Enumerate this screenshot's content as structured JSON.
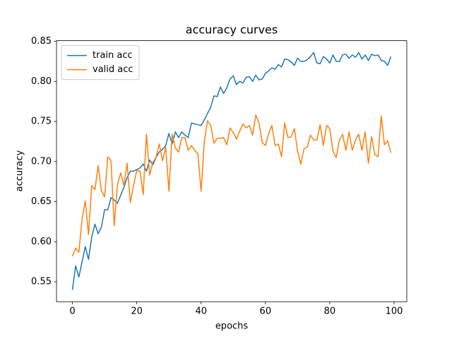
{
  "chart_data": {
    "type": "line",
    "title": "accuracy curves",
    "x_label": "epochs",
    "y_label": "accuracy",
    "x": [
      0,
      1,
      2,
      3,
      4,
      5,
      6,
      7,
      8,
      9,
      10,
      11,
      12,
      13,
      14,
      15,
      16,
      17,
      18,
      19,
      20,
      21,
      22,
      23,
      24,
      25,
      26,
      27,
      28,
      29,
      30,
      31,
      32,
      33,
      34,
      35,
      36,
      37,
      38,
      39,
      40,
      41,
      42,
      43,
      44,
      45,
      46,
      47,
      48,
      49,
      50,
      51,
      52,
      53,
      54,
      55,
      56,
      57,
      58,
      59,
      60,
      61,
      62,
      63,
      64,
      65,
      66,
      67,
      68,
      69,
      70,
      71,
      72,
      73,
      74,
      75,
      76,
      77,
      78,
      79,
      80,
      81,
      82,
      83,
      84,
      85,
      86,
      87,
      88,
      89,
      90,
      91,
      92,
      93,
      94,
      95,
      96,
      97,
      98,
      99
    ],
    "series": [
      {
        "name": "train acc",
        "color": "#1f77b4",
        "values": [
          0.54,
          0.57,
          0.556,
          0.575,
          0.594,
          0.578,
          0.606,
          0.622,
          0.61,
          0.618,
          0.64,
          0.64,
          0.655,
          0.652,
          0.648,
          0.658,
          0.668,
          0.68,
          0.688,
          0.688,
          0.69,
          0.692,
          0.697,
          0.688,
          0.702,
          0.696,
          0.705,
          0.712,
          0.715,
          0.72,
          0.735,
          0.722,
          0.737,
          0.73,
          0.737,
          0.733,
          0.73,
          0.748,
          0.747,
          0.746,
          0.745,
          0.752,
          0.76,
          0.768,
          0.782,
          0.781,
          0.793,
          0.785,
          0.792,
          0.803,
          0.807,
          0.796,
          0.8,
          0.798,
          0.805,
          0.806,
          0.8,
          0.808,
          0.802,
          0.803,
          0.81,
          0.813,
          0.817,
          0.815,
          0.821,
          0.818,
          0.828,
          0.827,
          0.824,
          0.82,
          0.829,
          0.825,
          0.825,
          0.827,
          0.831,
          0.836,
          0.823,
          0.822,
          0.831,
          0.828,
          0.823,
          0.833,
          0.825,
          0.825,
          0.833,
          0.834,
          0.829,
          0.833,
          0.83,
          0.836,
          0.828,
          0.833,
          0.826,
          0.834,
          0.832,
          0.833,
          0.826,
          0.825,
          0.82,
          0.831
        ]
      },
      {
        "name": "valid acc",
        "color": "#ff7f0e",
        "values": [
          0.582,
          0.592,
          0.587,
          0.628,
          0.651,
          0.609,
          0.67,
          0.665,
          0.695,
          0.664,
          0.656,
          0.706,
          0.701,
          0.62,
          0.671,
          0.686,
          0.67,
          0.698,
          0.649,
          0.67,
          0.689,
          0.688,
          0.659,
          0.734,
          0.683,
          0.699,
          0.705,
          0.722,
          0.701,
          0.718,
          0.663,
          0.734,
          0.717,
          0.712,
          0.73,
          0.73,
          0.714,
          0.72,
          0.714,
          0.71,
          0.663,
          0.725,
          0.751,
          0.745,
          0.723,
          0.729,
          0.729,
          0.73,
          0.721,
          0.742,
          0.736,
          0.728,
          0.738,
          0.747,
          0.742,
          0.745,
          0.733,
          0.758,
          0.748,
          0.724,
          0.72,
          0.735,
          0.745,
          0.72,
          0.722,
          0.706,
          0.748,
          0.73,
          0.731,
          0.741,
          0.713,
          0.697,
          0.716,
          0.718,
          0.733,
          0.727,
          0.727,
          0.746,
          0.72,
          0.745,
          0.741,
          0.713,
          0.705,
          0.727,
          0.734,
          0.714,
          0.737,
          0.714,
          0.727,
          0.734,
          0.714,
          0.737,
          0.698,
          0.731,
          0.709,
          0.706,
          0.757,
          0.721,
          0.726,
          0.711
        ]
      }
    ],
    "xlim": [
      -4.95,
      103.95
    ],
    "xticks": [
      0,
      20,
      40,
      60,
      80,
      100
    ],
    "ylim": [
      0.5252,
      0.8508
    ],
    "yticks": [
      0.55,
      {
        "value": 0.6,
        "label": "0.60"
      },
      0.65,
      {
        "value": 0.7,
        "label": "0.70"
      },
      0.75,
      {
        "value": 0.8,
        "label": "0.80"
      },
      0.85
    ],
    "legend": "upper left",
    "grid": false
  }
}
